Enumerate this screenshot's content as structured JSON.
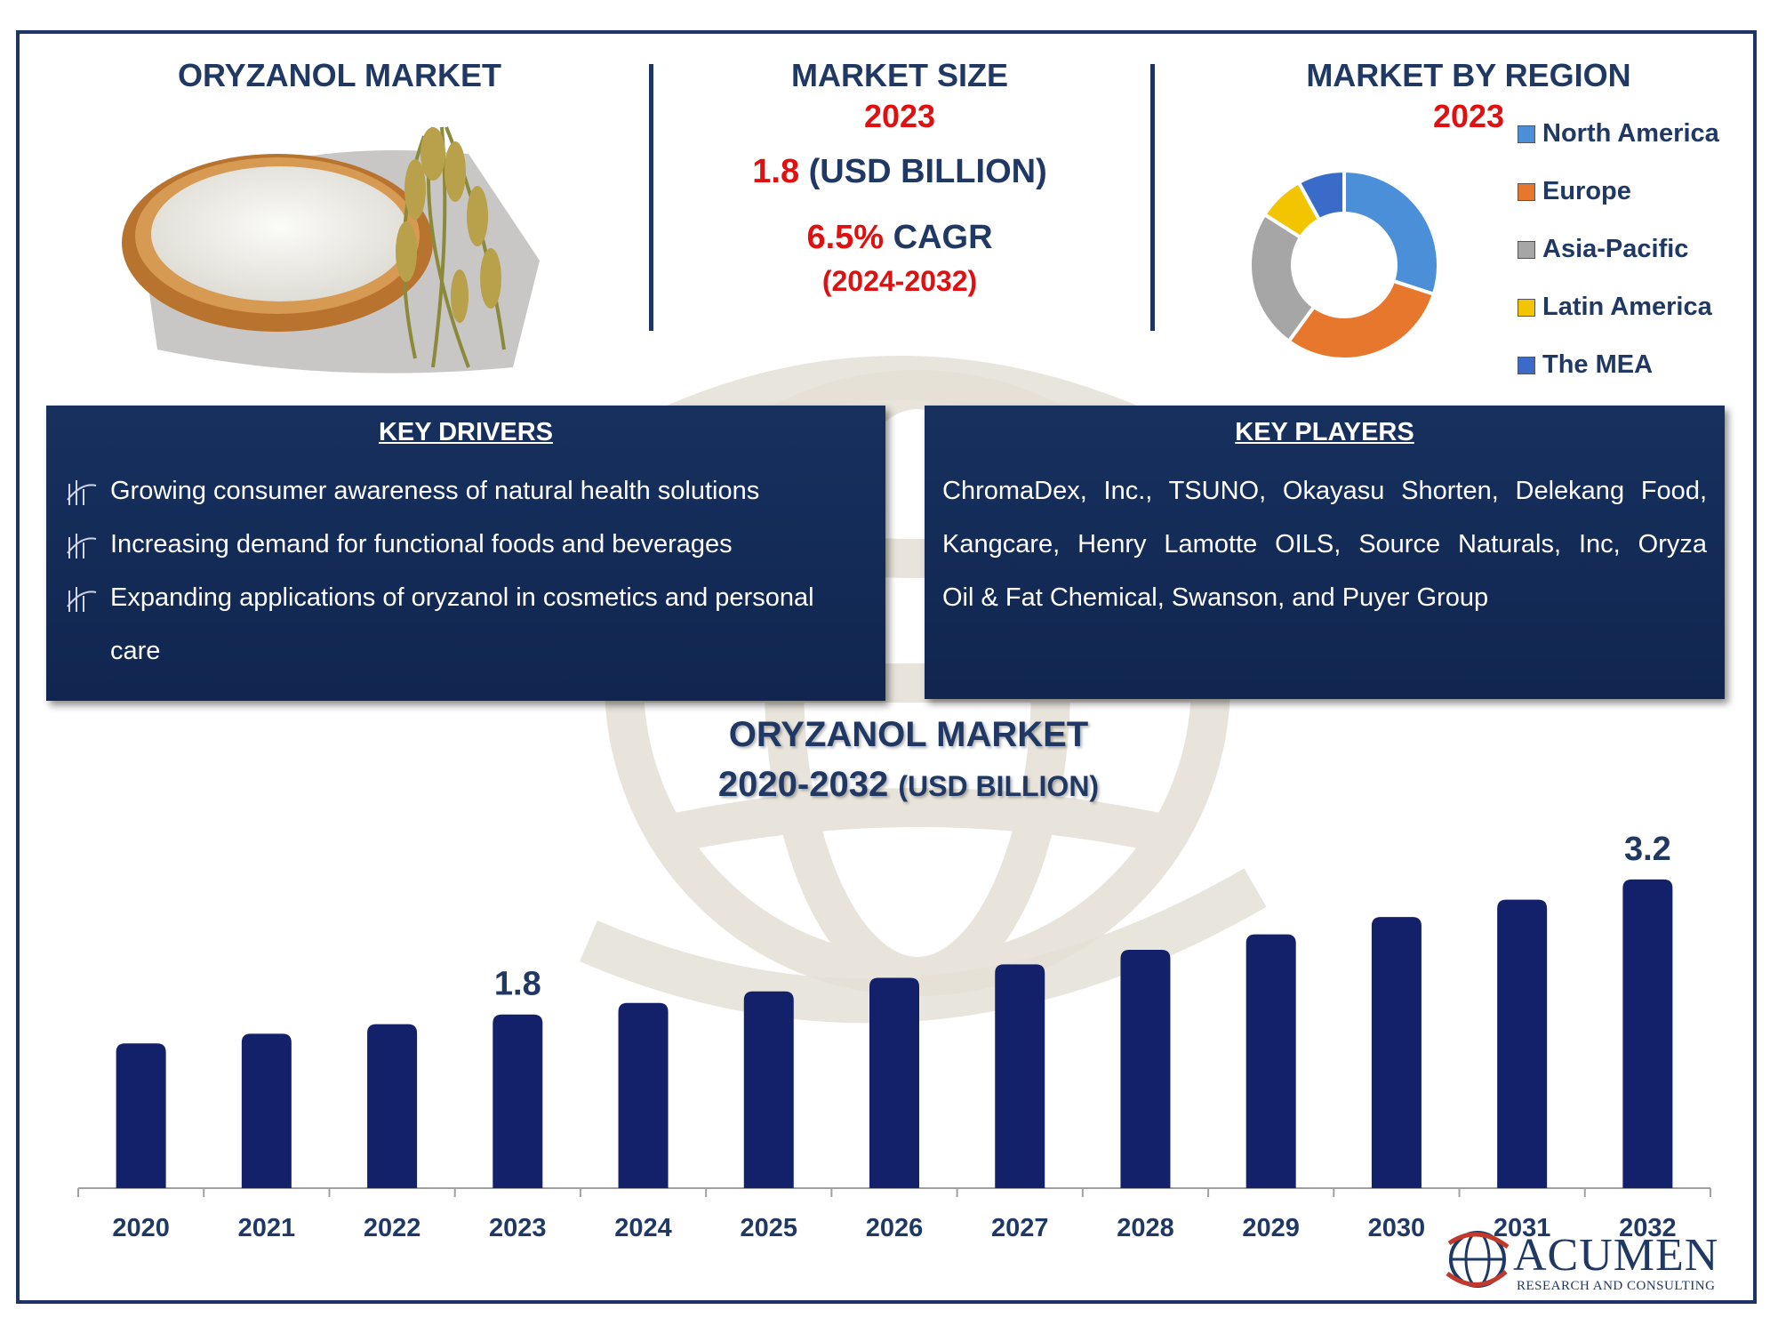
{
  "top": {
    "left_title": "ORYZANOL MARKET",
    "size_title": "MARKET SIZE",
    "size_year": "2023",
    "size_value": "1.8",
    "size_unit": "(USD BILLION)",
    "cagr_value": "6.5%",
    "cagr_label": "CAGR",
    "cagr_period": "(2024-2032)",
    "region_title": "MARKET BY REGION",
    "region_year": "2023"
  },
  "region_donut": {
    "segments": [
      {
        "name": "North America",
        "value": 30,
        "color": "#4a8fd8"
      },
      {
        "name": "Europe",
        "value": 30,
        "color": "#e8772e"
      },
      {
        "name": "Asia-Pacific",
        "value": 24,
        "color": "#a6a6a6"
      },
      {
        "name": "Latin America",
        "value": 8,
        "color": "#f2c500"
      },
      {
        "name": "The MEA",
        "value": 8,
        "color": "#3a6bc8"
      }
    ]
  },
  "key_drivers": {
    "title": "KEY DRIVERS",
    "items": [
      "Growing consumer awareness of natural health solutions",
      "Increasing demand for functional foods and beverages",
      "Expanding applications of oryzanol in cosmetics and personal",
      "care"
    ]
  },
  "key_players": {
    "title": "KEY PLAYERS",
    "lines": [
      "ChromaDex, Inc., TSUNO, Okayasu Shorten, Delekang Food,",
      "Kangcare, Henry Lamotte OILS, Source Naturals, Inc, Oryza",
      "Oil & Fat Chemical, Swanson, and Puyer Group"
    ]
  },
  "chart_data": {
    "type": "bar",
    "title": "ORYZANOL MARKET",
    "subtitle_main": "2020-2032",
    "subtitle_unit": "(USD BILLION)",
    "categories": [
      "2020",
      "2021",
      "2022",
      "2023",
      "2024",
      "2025",
      "2026",
      "2027",
      "2028",
      "2029",
      "2030",
      "2031",
      "2032"
    ],
    "values": [
      1.5,
      1.6,
      1.7,
      1.8,
      1.92,
      2.04,
      2.18,
      2.32,
      2.47,
      2.63,
      2.81,
      2.99,
      3.2
    ],
    "data_labels": [
      {
        "category": "2023",
        "text": "1.8"
      },
      {
        "category": "2032",
        "text": "3.2"
      }
    ],
    "bar_color": "#13216b",
    "ylim": [
      0,
      3.3
    ],
    "grid": false
  },
  "logo": {
    "name": "ACUMEN",
    "tagline": "RESEARCH AND CONSULTING"
  }
}
